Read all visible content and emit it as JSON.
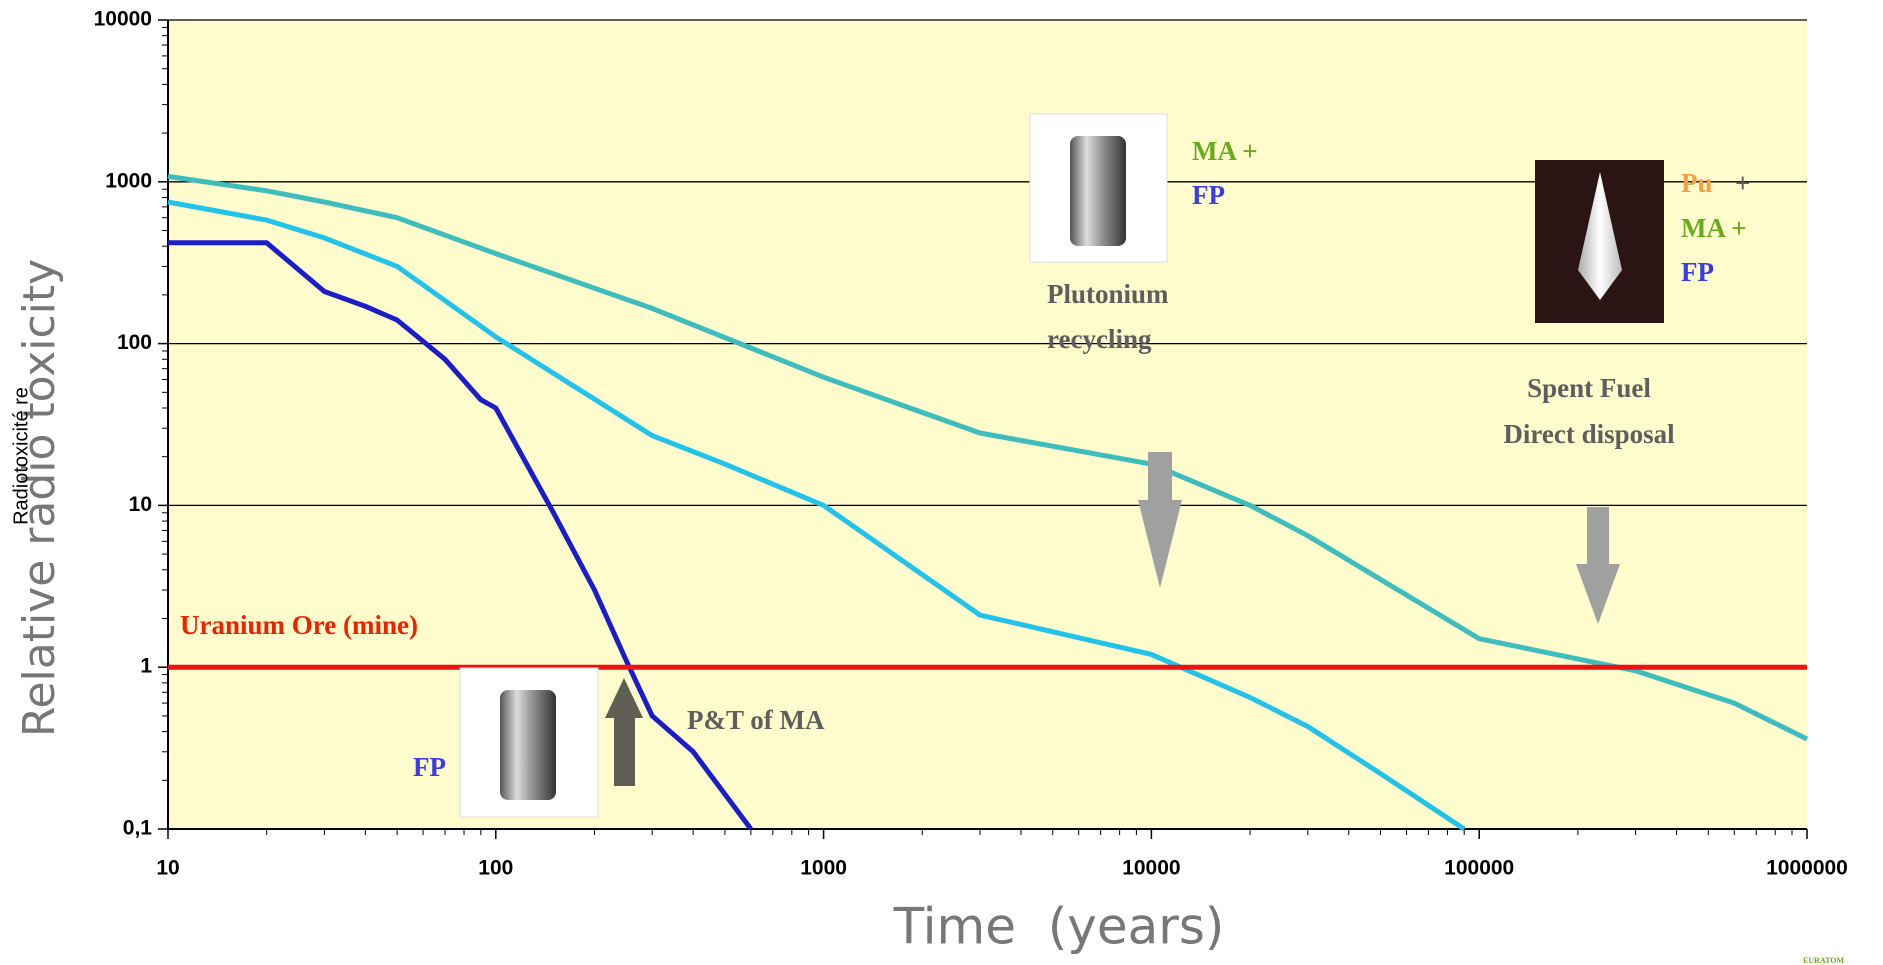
{
  "chart_data": {
    "type": "line",
    "x_label": "Time  (years)",
    "y_label": "Relative radio toxicity",
    "y_label_overlay": "Radiotoxicité re",
    "xscale": "log",
    "yscale": "log",
    "xlim": [
      10,
      1000000
    ],
    "ylim": [
      0.1,
      10000
    ],
    "xticks": [
      10,
      100,
      1000,
      10000,
      100000,
      1000000
    ],
    "yticks": [
      {
        "value": 0.1,
        "label": "0,1"
      },
      1,
      10,
      100,
      1000,
      10000
    ],
    "grid": true,
    "background": "#fefbcc",
    "series": [
      {
        "color": "#3dbdbd",
        "x": [
          10,
          20,
          30,
          50,
          100,
          300,
          1000,
          3000,
          10000,
          20000,
          30000,
          100000,
          300000,
          600000,
          1000000
        ],
        "values": [
          1080,
          880,
          750,
          600,
          360,
          165,
          62,
          28,
          18,
          10,
          6.5,
          1.5,
          0.95,
          0.6,
          0.36
        ]
      },
      {
        "color": "#22c3ea",
        "x": [
          10,
          20,
          30,
          50,
          100,
          300,
          500,
          1000,
          3000,
          10000,
          20000,
          30000,
          50000,
          90000
        ],
        "values": [
          750,
          580,
          450,
          300,
          110,
          27,
          18,
          10,
          2.1,
          1.2,
          0.65,
          0.43,
          0.22,
          0.1
        ]
      },
      {
        "color": "#1c1cc8",
        "x": [
          10,
          20,
          30,
          40,
          50,
          70,
          90,
          100,
          150,
          200,
          250,
          300,
          400,
          600
        ],
        "values": [
          420,
          420,
          210,
          170,
          140,
          80,
          45,
          40,
          9,
          3,
          1.1,
          0.5,
          0.3,
          0.1
        ]
      },
      {
        "color": "#ee1111",
        "x": [
          10,
          1000000
        ],
        "values": [
          1,
          1
        ]
      }
    ],
    "annotations": [
      {
        "text": "MA +",
        "color": "#6aaa1e"
      },
      {
        "text": "FP",
        "color": "#3b3bea"
      },
      {
        "text": "Plutonium",
        "color": "#5e5e5e"
      },
      {
        "text": "recycling",
        "color": "#5e5e5e"
      },
      {
        "text": "Pu",
        "color": "#f5a040"
      },
      {
        "text": "+",
        "color": "#5e5e5e"
      },
      {
        "text": "MA +",
        "color": "#6aaa1e"
      },
      {
        "text": "FP",
        "color": "#3b3bea"
      },
      {
        "text": "Spent Fuel",
        "color": "#5e5e5e"
      },
      {
        "text": "Direct disposal",
        "color": "#5e5e5e"
      },
      {
        "text": "Uranium Ore (mine)",
        "color": "#ee2200"
      },
      {
        "text": "FP",
        "color": "#3b3bea"
      },
      {
        "text": "P&T of MA",
        "color": "#5e5e5e"
      },
      {
        "text": "EURATOM",
        "color": "#6aaa1e"
      }
    ]
  }
}
